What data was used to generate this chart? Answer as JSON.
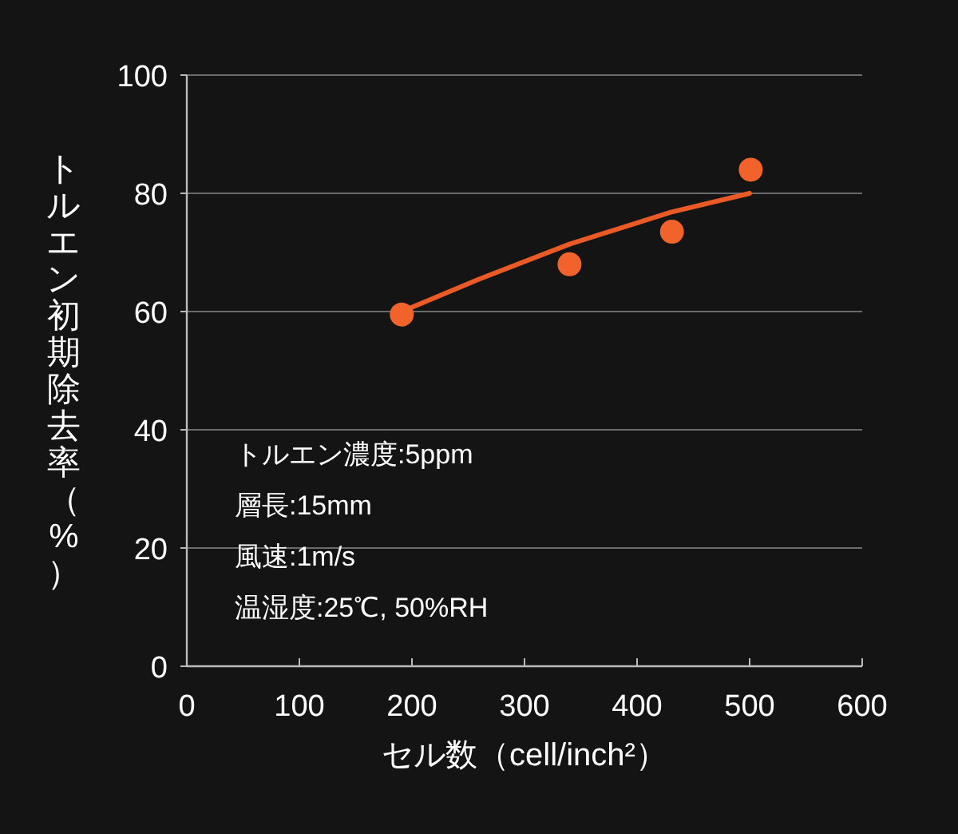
{
  "chart_data": {
    "type": "scatter",
    "xlabel": "セル数（cell/inch²）",
    "ylabel": "トルエン初期除去率（%）",
    "xlim": [
      0,
      600
    ],
    "xticks": [
      0,
      100,
      200,
      300,
      400,
      500,
      600
    ],
    "ylim": [
      0,
      100
    ],
    "yticks": [
      0,
      20,
      40,
      60,
      80,
      100
    ],
    "grid": "y",
    "series": [
      {
        "color": "#f2632c",
        "marker": "circle",
        "x": [
          191,
          340,
          431,
          501
        ],
        "values": [
          59.5,
          68,
          73.5,
          84
        ]
      },
      {
        "type": "line",
        "color": "#ea5a26",
        "marker": "none",
        "x": [
          191,
          260,
          340,
          430,
          500
        ],
        "values": [
          60,
          65.5,
          71.4,
          76.8,
          80
        ]
      }
    ],
    "annotations": [
      "トルエン濃度:5ppm",
      "層長:15mm",
      "風速:1m/s",
      "温湿度:25℃, 50%RH"
    ]
  }
}
